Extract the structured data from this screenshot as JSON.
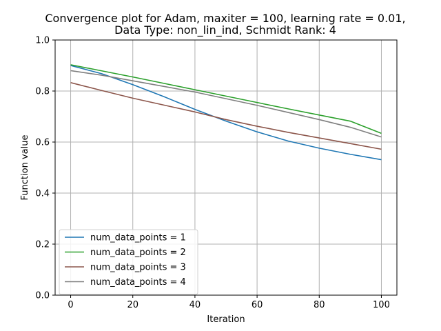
{
  "chart_data": {
    "type": "line",
    "title_line1": "Convergence plot for Adam, maxiter = 100, learning rate = 0.01,",
    "title_line2": "Data Type: non_lin_ind, Schmidt Rank: 4",
    "xlabel": "Iteration",
    "ylabel": "Function value",
    "xlim": [
      -5,
      105
    ],
    "ylim": [
      0.0,
      1.0
    ],
    "xticks": [
      0,
      20,
      40,
      60,
      80,
      100
    ],
    "yticks": [
      0.0,
      0.2,
      0.4,
      0.6,
      0.8,
      1.0
    ],
    "xtick_labels": [
      "0",
      "20",
      "40",
      "60",
      "80",
      "100"
    ],
    "ytick_labels": [
      "0.0",
      "0.2",
      "0.4",
      "0.6",
      "0.8",
      "1.0"
    ],
    "grid": true,
    "legend_position": "lower-left",
    "x": [
      0,
      10,
      20,
      30,
      40,
      50,
      60,
      70,
      80,
      90,
      100
    ],
    "series": [
      {
        "name": "num_data_points = 1",
        "color": "#1f77b4",
        "values": [
          0.9,
          0.868,
          0.825,
          0.778,
          0.728,
          0.682,
          0.64,
          0.604,
          0.576,
          0.552,
          0.531
        ]
      },
      {
        "name": "num_data_points = 2",
        "color": "#2ca02c",
        "values": [
          0.903,
          0.879,
          0.855,
          0.83,
          0.805,
          0.78,
          0.755,
          0.73,
          0.706,
          0.682,
          0.634
        ]
      },
      {
        "name": "num_data_points = 3",
        "color": "#8c564b",
        "values": [
          0.833,
          0.802,
          0.772,
          0.745,
          0.718,
          0.688,
          0.662,
          0.638,
          0.616,
          0.594,
          0.572
        ]
      },
      {
        "name": "num_data_points = 4",
        "color": "#7f7f7f",
        "values": [
          0.88,
          0.862,
          0.84,
          0.818,
          0.796,
          0.77,
          0.744,
          0.716,
          0.688,
          0.658,
          0.62
        ]
      }
    ]
  }
}
